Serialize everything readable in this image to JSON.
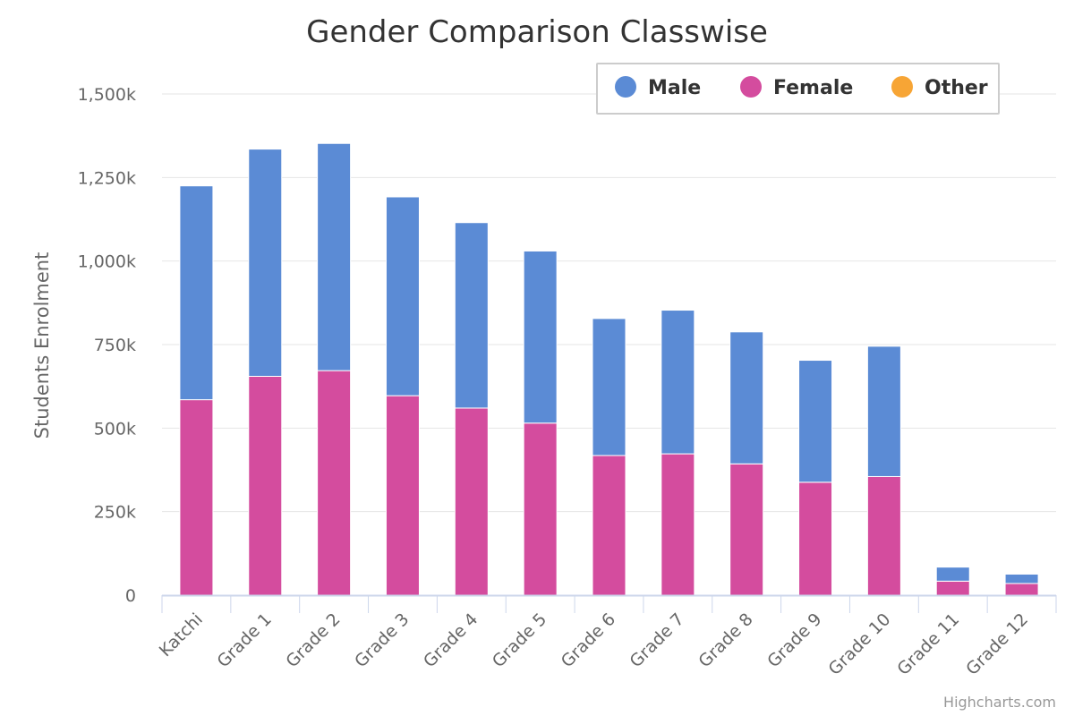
{
  "credits": "Highcharts.com",
  "chart_data": {
    "type": "bar",
    "stacked": true,
    "title": "Gender Comparison Classwise",
    "xlabel": "",
    "ylabel": "Students Enrolment",
    "ylim": [
      0,
      1500000
    ],
    "ytick_values": [
      0,
      250000,
      500000,
      750000,
      1000000,
      1250000,
      1500000
    ],
    "ytick_labels": [
      "0",
      "250k",
      "500k",
      "750k",
      "1,000k",
      "1,250k",
      "1,500k"
    ],
    "grid": true,
    "legend_position": "top-right",
    "categories": [
      "Katchi",
      "Grade 1",
      "Grade 2",
      "Grade 3",
      "Grade 4",
      "Grade 5",
      "Grade 6",
      "Grade 7",
      "Grade 8",
      "Grade 9",
      "Grade 10",
      "Grade 11",
      "Grade 12"
    ],
    "series": [
      {
        "name": "Male",
        "color": "#5b8bd5",
        "values": [
          640000,
          680000,
          680000,
          595000,
          555000,
          515000,
          410000,
          430000,
          395000,
          365000,
          390000,
          42000,
          28000
        ]
      },
      {
        "name": "Female",
        "color": "#d44c9e",
        "values": [
          585000,
          655000,
          672000,
          597000,
          560000,
          515000,
          418000,
          423000,
          393000,
          338000,
          355000,
          42000,
          35000
        ]
      },
      {
        "name": "Other",
        "color": "#f7a535",
        "values": [
          0,
          0,
          0,
          0,
          0,
          0,
          0,
          0,
          0,
          0,
          0,
          0,
          0
        ]
      }
    ]
  }
}
